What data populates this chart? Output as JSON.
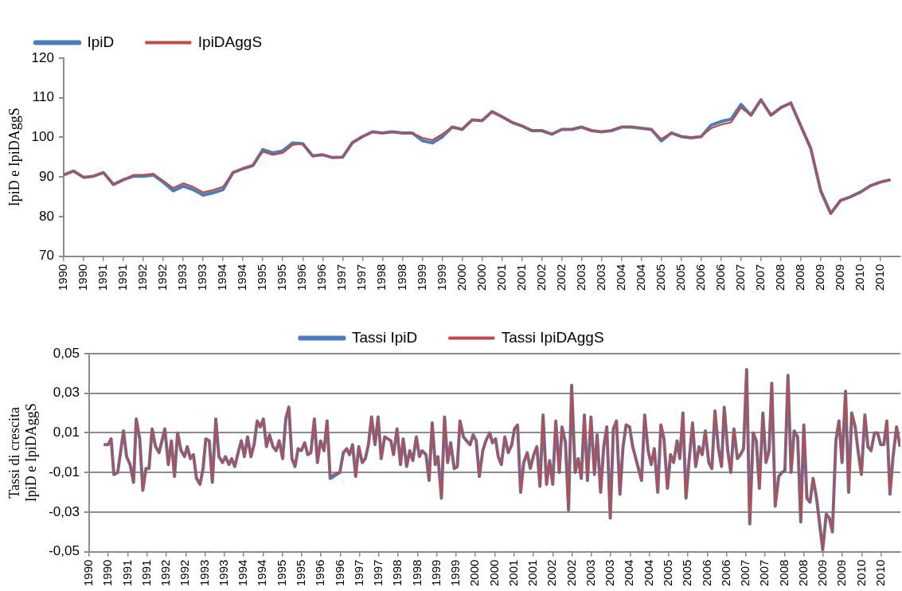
{
  "chart_data": [
    {
      "type": "line",
      "ylabel": "IpiD e IpiDAggS",
      "legend": "top left",
      "grid": false,
      "marker": "none",
      "line_style": "solid",
      "xlim": [
        1990,
        2011
      ],
      "ylim": [
        70,
        120
      ],
      "yticks": [
        70,
        80,
        90,
        100,
        110,
        120
      ],
      "xticks": [
        {
          "value": 1990,
          "label": "1990"
        },
        {
          "value": 1990.5,
          "label": "1990"
        },
        {
          "value": 1991,
          "label": "1991"
        },
        {
          "value": 1991.5,
          "label": "1991"
        },
        {
          "value": 1992,
          "label": "1992"
        },
        {
          "value": 1992.5,
          "label": "1992"
        },
        {
          "value": 1993,
          "label": "1993"
        },
        {
          "value": 1993.5,
          "label": "1993"
        },
        {
          "value": 1994,
          "label": "1994"
        },
        {
          "value": 1994.5,
          "label": "1994"
        },
        {
          "value": 1995,
          "label": "1995"
        },
        {
          "value": 1995.5,
          "label": "1995"
        },
        {
          "value": 1996,
          "label": "1996"
        },
        {
          "value": 1996.5,
          "label": "1996"
        },
        {
          "value": 1997,
          "label": "1997"
        },
        {
          "value": 1997.5,
          "label": "1997"
        },
        {
          "value": 1998,
          "label": "1998"
        },
        {
          "value": 1998.5,
          "label": "1998"
        },
        {
          "value": 1999,
          "label": "1999"
        },
        {
          "value": 1999.5,
          "label": "1999"
        },
        {
          "value": 2000,
          "label": "2000"
        },
        {
          "value": 2000.5,
          "label": "2000"
        },
        {
          "value": 2001,
          "label": "2001"
        },
        {
          "value": 2001.5,
          "label": "2001"
        },
        {
          "value": 2002,
          "label": "2002"
        },
        {
          "value": 2002.5,
          "label": "2002"
        },
        {
          "value": 2003,
          "label": "2003"
        },
        {
          "value": 2003.5,
          "label": "2003"
        },
        {
          "value": 2004,
          "label": "2004"
        },
        {
          "value": 2004.5,
          "label": "2004"
        },
        {
          "value": 2005,
          "label": "2005"
        },
        {
          "value": 2005.5,
          "label": "2005"
        },
        {
          "value": 2006,
          "label": "2006"
        },
        {
          "value": 2006.5,
          "label": "2006"
        },
        {
          "value": 2007,
          "label": "2007"
        },
        {
          "value": 2007.5,
          "label": "2007"
        },
        {
          "value": 2008,
          "label": "2008"
        },
        {
          "value": 2008.5,
          "label": "2008"
        },
        {
          "value": 2009,
          "label": "2009"
        },
        {
          "value": 2009.5,
          "label": "2009"
        },
        {
          "value": 2010,
          "label": "2010"
        },
        {
          "value": 2010.5,
          "label": "2010"
        }
      ],
      "x": [
        1990,
        1990.25,
        1990.5,
        1990.75,
        1991,
        1991.25,
        1991.5,
        1991.75,
        1992,
        1992.25,
        1992.5,
        1992.75,
        1993,
        1993.25,
        1993.5,
        1993.75,
        1994,
        1994.25,
        1994.5,
        1994.75,
        1995,
        1995.25,
        1995.5,
        1995.75,
        1996,
        1996.25,
        1996.5,
        1996.75,
        1997,
        1997.25,
        1997.5,
        1997.75,
        1998,
        1998.25,
        1998.5,
        1998.75,
        1999,
        1999.25,
        1999.5,
        1999.75,
        2000,
        2000.25,
        2000.5,
        2000.75,
        2001,
        2001.25,
        2001.5,
        2001.75,
        2002,
        2002.25,
        2002.5,
        2002.75,
        2003,
        2003.25,
        2003.5,
        2003.75,
        2004,
        2004.25,
        2004.5,
        2004.75,
        2005,
        2005.25,
        2005.5,
        2005.75,
        2006,
        2006.25,
        2006.5,
        2006.75,
        2007,
        2007.25,
        2007.5,
        2007.75,
        2008,
        2008.25,
        2008.5,
        2008.75,
        2009,
        2009.25,
        2009.5,
        2009.75,
        2010,
        2010.25,
        2010.5,
        2010.75
      ],
      "series": [
        {
          "name": "IpiD",
          "color": "#4a7ebb",
          "values": [
            90.5,
            91.5,
            89.9,
            90.2,
            91.1,
            88.1,
            89.3,
            90.2,
            90.2,
            90.5,
            88.7,
            86.5,
            87.7,
            86.8,
            85.4,
            86,
            86.8,
            91.1,
            92.1,
            92.9,
            96.9,
            96.1,
            96.6,
            98.6,
            98.4,
            95.3,
            95.6,
            94.9,
            95,
            98.7,
            100.2,
            101.4,
            101.1,
            101.4,
            101.1,
            101.1,
            99.2,
            98.6,
            100.1,
            102.6,
            102,
            104.4,
            104.2,
            106.5,
            105.2,
            103.8,
            102.9,
            101.7,
            101.7,
            100.8,
            102,
            102,
            102.6,
            101.7,
            101.4,
            101.7,
            102.6,
            102.6,
            102.3,
            102,
            99.1,
            101.1,
            100.2,
            99.9,
            100.2,
            103.1,
            104,
            104.6,
            108.3,
            105.6,
            109.5,
            105.6,
            107.5,
            108.7,
            102.9,
            97.2,
            86.5,
            80.8,
            84.1,
            85,
            86.2,
            87.8,
            88.7,
            89.3
          ]
        },
        {
          "name": "IpiDAggS",
          "color": "#be4b48",
          "values": [
            90.5,
            91.5,
            89.9,
            90.2,
            91.1,
            88.1,
            89.3,
            90.5,
            90.5,
            90.8,
            89,
            87.2,
            88.4,
            87.5,
            86.1,
            86.7,
            87.5,
            91.1,
            92.1,
            92.9,
            96.4,
            95.6,
            96.1,
            98.1,
            98.4,
            95.3,
            95.6,
            94.9,
            95,
            98.7,
            100.2,
            101.4,
            101.1,
            101.4,
            101.1,
            101.1,
            99.9,
            99.3,
            100.8,
            102.6,
            102,
            104.4,
            104.2,
            106.5,
            105.2,
            103.8,
            102.9,
            101.7,
            101.7,
            100.8,
            102,
            102,
            102.6,
            101.7,
            101.4,
            101.7,
            102.6,
            102.6,
            102.3,
            102,
            99.6,
            101.1,
            100.2,
            99.9,
            100.2,
            102.3,
            103.2,
            103.8,
            107.5,
            105.6,
            109.5,
            105.6,
            107.5,
            108.7,
            102.9,
            97.2,
            86.5,
            80.8,
            84.1,
            85,
            86.2,
            87.8,
            88.7,
            89.3
          ]
        }
      ]
    },
    {
      "type": "line",
      "ylabel": "Tassi di crescita IpiD e IpiDAggS",
      "legend": "top",
      "grid": "y",
      "marker": "none",
      "line_style": "solid",
      "xlim": [
        1990,
        2011
      ],
      "ylim": [
        -0.05,
        0.05
      ],
      "yticks": [
        {
          "value": -0.05,
          "label": "-0,05"
        },
        {
          "value": -0.03,
          "label": "-0,03"
        },
        {
          "value": -0.01,
          "label": "-0,01"
        },
        {
          "value": 0.01,
          "label": "0,01"
        },
        {
          "value": 0.03,
          "label": "0,03"
        },
        {
          "value": 0.05,
          "label": "0,05"
        }
      ],
      "xticks": [
        {
          "value": 1990,
          "label": "1990"
        },
        {
          "value": 1990.5,
          "label": "1990"
        },
        {
          "value": 1991,
          "label": "1991"
        },
        {
          "value": 1991.5,
          "label": "1991"
        },
        {
          "value": 1992,
          "label": "1992"
        },
        {
          "value": 1992.5,
          "label": "1992"
        },
        {
          "value": 1993,
          "label": "1993"
        },
        {
          "value": 1993.5,
          "label": "1993"
        },
        {
          "value": 1994,
          "label": "1994"
        },
        {
          "value": 1994.5,
          "label": "1994"
        },
        {
          "value": 1995,
          "label": "1995"
        },
        {
          "value": 1995.5,
          "label": "1995"
        },
        {
          "value": 1996,
          "label": "1996"
        },
        {
          "value": 1996.5,
          "label": "1996"
        },
        {
          "value": 1997,
          "label": "1997"
        },
        {
          "value": 1997.5,
          "label": "1997"
        },
        {
          "value": 1998,
          "label": "1998"
        },
        {
          "value": 1998.5,
          "label": "1998"
        },
        {
          "value": 1999,
          "label": "1999"
        },
        {
          "value": 1999.5,
          "label": "1999"
        },
        {
          "value": 2000,
          "label": "2000"
        },
        {
          "value": 2000.5,
          "label": "2000"
        },
        {
          "value": 2001,
          "label": "2001"
        },
        {
          "value": 2001.5,
          "label": "2001"
        },
        {
          "value": 2002,
          "label": "2002"
        },
        {
          "value": 2002.5,
          "label": "2002"
        },
        {
          "value": 2003,
          "label": "2003"
        },
        {
          "value": 2003.5,
          "label": "2003"
        },
        {
          "value": 2004,
          "label": "2004"
        },
        {
          "value": 2004.5,
          "label": "2004"
        },
        {
          "value": 2005,
          "label": "2005"
        },
        {
          "value": 2005.5,
          "label": "2005"
        },
        {
          "value": 2006,
          "label": "2006"
        },
        {
          "value": 2006.5,
          "label": "2006"
        },
        {
          "value": 2007,
          "label": "2007"
        },
        {
          "value": 2007.5,
          "label": "2007"
        },
        {
          "value": 2008,
          "label": "2008"
        },
        {
          "value": 2008.5,
          "label": "2008"
        },
        {
          "value": 2009,
          "label": "2009"
        },
        {
          "value": 2009.5,
          "label": "2009"
        },
        {
          "value": 2010,
          "label": "2010"
        },
        {
          "value": 2010.5,
          "label": "2010"
        }
      ],
      "x": [
        1990.38,
        1990.49,
        1990.57,
        1990.64,
        1990.74,
        1990.89,
        1990.97,
        1991.06,
        1991.15,
        1991.22,
        1991.31,
        1991.39,
        1991.47,
        1991.55,
        1991.63,
        1991.72,
        1991.81,
        1991.96,
        1992.05,
        1992.13,
        1992.21,
        1992.29,
        1992.38,
        1992.47,
        1992.54,
        1992.62,
        1992.7,
        1992.78,
        1992.87,
        1992.95,
        1993.02,
        1993.11,
        1993.19,
        1993.28,
        1993.36,
        1993.45,
        1993.53,
        1993.62,
        1993.69,
        1993.77,
        1993.87,
        1993.94,
        1994.02,
        1994.1,
        1994.19,
        1994.27,
        1994.35,
        1994.43,
        1994.51,
        1994.59,
        1994.67,
        1994.76,
        1994.84,
        1994.92,
        1995.01,
        1995.09,
        1995.17,
        1995.25,
        1995.33,
        1995.41,
        1995.49,
        1995.58,
        1995.66,
        1995.74,
        1995.83,
        1995.91,
        1995.99,
        1996.08,
        1996.16,
        1996.24,
        1996.33,
        1996.49,
        1996.58,
        1996.67,
        1996.74,
        1996.82,
        1996.9,
        1996.98,
        1997.07,
        1997.15,
        1997.23,
        1997.31,
        1997.4,
        1997.48,
        1997.56,
        1997.65,
        1997.81,
        1997.88,
        1997.97,
        1998.06,
        1998.13,
        1998.22,
        1998.3,
        1998.38,
        1998.47,
        1998.55,
        1998.62,
        1998.72,
        1998.8,
        1998.88,
        1998.96,
        1999.03,
        1999.12,
        1999.2,
        1999.28,
        1999.36,
        1999.45,
        1999.53,
        1999.6,
        1999.69,
        1999.77,
        1999.86,
        1999.94,
        2000.02,
        2000.1,
        2000.19,
        2000.27,
        2000.37,
        2000.44,
        2000.52,
        2000.59,
        2000.67,
        2000.76,
        2000.85,
        2000.94,
        2001.01,
        2001.09,
        2001.17,
        2001.25,
        2001.34,
        2001.42,
        2001.51,
        2001.59,
        2001.67,
        2001.75,
        2001.84,
        2001.92,
        2002,
        2002.08,
        2002.17,
        2002.24,
        2002.33,
        2002.41,
        2002.49,
        2002.58,
        2002.66,
        2002.74,
        2002.82,
        2002.9,
        2002.99,
        2003.08,
        2003.15,
        2003.24,
        2003.32,
        2003.4,
        2003.49,
        2003.57,
        2003.65,
        2003.74,
        2003.82,
        2003.9,
        2003.99,
        2004.07,
        2004.3,
        2004.38,
        2004.47,
        2004.55,
        2004.63,
        2004.72,
        2004.8,
        2004.88,
        2004.97,
        2005.05,
        2005.13,
        2005.22,
        2005.29,
        2005.37,
        2005.45,
        2005.53,
        2005.62,
        2005.7,
        2005.79,
        2005.87,
        2005.95,
        2006.04,
        2006.12,
        2006.2,
        2006.29,
        2006.37,
        2006.44,
        2006.53,
        2006.61,
        2006.69,
        2006.78,
        2006.86,
        2006.94,
        2007.02,
        2007.1,
        2007.19,
        2007.27,
        2007.35,
        2007.44,
        2007.52,
        2007.6,
        2007.67,
        2007.76,
        2007.85,
        2007.93,
        2008.01,
        2008.09,
        2008.17,
        2008.25,
        2008.34,
        2008.42,
        2008.5,
        2008.58,
        2008.66,
        2008.74,
        2008.83,
        2008.99,
        2009.08,
        2009.16,
        2009.24,
        2009.33,
        2009.41,
        2009.49,
        2009.58,
        2009.66,
        2009.74,
        2009.83,
        2009.91,
        2009.99,
        2010.08,
        2010.16,
        2010.24,
        2010.33,
        2010.41,
        2010.49,
        2010.57,
        2010.65,
        2010.73,
        2010.81,
        2010.9,
        2010.99
      ],
      "series": [
        {
          "name": "Tassi IpiD",
          "color": "#4a7ebb",
          "values": [
            0.004,
            0.004,
            0.007,
            -0.011,
            -0.01,
            0.011,
            -0.002,
            -0.006,
            -0.015,
            0.017,
            0.007,
            -0.019,
            -0.008,
            -0.008,
            0.012,
            0.003,
            0,
            0.012,
            -0.006,
            0.006,
            -0.012,
            0.01,
            0.001,
            -0.002,
            0.003,
            -0.003,
            -0.001,
            -0.013,
            -0.016,
            -0.008,
            0.007,
            0.006,
            -0.015,
            0.017,
            -0.002,
            -0.005,
            -0.002,
            -0.006,
            -0.003,
            -0.007,
            0.001,
            0.006,
            -0.002,
            0.008,
            -0.002,
            0.004,
            0.016,
            0.013,
            0.017,
            0.003,
            0.009,
            0.003,
            0.001,
            0.006,
            -0.003,
            0.017,
            0.023,
            -0.003,
            -0.007,
            0.002,
            0.001,
            0.005,
            -0.001,
            0,
            0.017,
            -0.005,
            0.006,
            0.001,
            0.016,
            -0.013,
            -0.012,
            -0.01,
            0,
            0.002,
            -0.001,
            0.004,
            -0.012,
            0.003,
            -0.005,
            -0.003,
            0.004,
            0.018,
            0.004,
            0.018,
            -0.003,
            0.008,
            0.006,
            -0.001,
            0.012,
            -0.006,
            0.007,
            -0.007,
            0.001,
            -0.004,
            0.008,
            -0.002,
            0.001,
            -0.001,
            -0.014,
            0.015,
            -0.006,
            -0.002,
            -0.023,
            0.018,
            -0.005,
            0.005,
            -0.008,
            -0.007,
            0.016,
            0.008,
            0.006,
            0.004,
            0.009,
            0.006,
            -0.012,
            0.001,
            0.006,
            0.01,
            0.005,
            0.007,
            -0.002,
            -0.006,
            0.008,
            0,
            0.004,
            0.012,
            0.014,
            -0.02,
            -0.005,
            0,
            -0.008,
            -0.001,
            0.003,
            -0.017,
            0.019,
            -0.016,
            -0.004,
            -0.016,
            0.016,
            -0.01,
            0.013,
            0.005,
            -0.029,
            0.034,
            -0.01,
            -0.003,
            -0.013,
            0.019,
            -0.014,
            0.018,
            -0.011,
            0.009,
            -0.02,
            0.003,
            0.013,
            -0.033,
            0.012,
            0.016,
            -0.021,
            0.003,
            0.014,
            0.013,
            0.003,
            -0.014,
            0.019,
            0.001,
            -0.006,
            0.002,
            -0.02,
            0.014,
            0.007,
            -0.018,
            -0.001,
            -0.005,
            0.006,
            -0.003,
            0.02,
            -0.023,
            -0.004,
            0.015,
            -0.007,
            0.003,
            -0.001,
            0.011,
            -0.005,
            -0.008,
            0.021,
            0.002,
            -0.007,
            0.023,
            0.001,
            -0.01,
            0.012,
            -0.003,
            -0.001,
            0.002,
            0.042,
            -0.036,
            0.01,
            0.006,
            -0.018,
            0.02,
            -0.005,
            0.001,
            0.035,
            -0.027,
            -0.012,
            -0.01,
            -0.009,
            0.039,
            -0.01,
            0.011,
            0.008,
            -0.035,
            0.014,
            -0.023,
            -0.025,
            -0.013,
            -0.023,
            -0.049,
            -0.031,
            -0.033,
            -0.04,
            0.006,
            0.016,
            -0.005,
            0.031,
            -0.02,
            0.02,
            0.013,
            0,
            -0.011,
            0.019,
            0.003,
            0.001,
            0.01,
            0.01,
            0.004,
            0.004,
            0.016,
            -0.021,
            -0.002,
            0.013,
            0.003
          ]
        },
        {
          "name": "Tassi IpiDAggS",
          "color": "#be4b48",
          "values": [
            0.004,
            0.004,
            0.007,
            -0.011,
            -0.01,
            0.011,
            -0.002,
            -0.006,
            -0.015,
            0.017,
            0.007,
            -0.019,
            -0.008,
            -0.008,
            0.012,
            0.003,
            0,
            0.012,
            -0.006,
            0.006,
            -0.012,
            0.01,
            0.001,
            -0.002,
            0.003,
            -0.003,
            -0.001,
            -0.013,
            -0.016,
            -0.008,
            0.007,
            0.006,
            -0.015,
            0.017,
            -0.002,
            -0.005,
            -0.002,
            -0.006,
            -0.003,
            -0.007,
            0.001,
            0.006,
            -0.002,
            0.008,
            -0.002,
            0.004,
            0.016,
            0.013,
            0.017,
            0.003,
            0.009,
            0.003,
            0.001,
            0.006,
            -0.003,
            0.017,
            0.023,
            -0.003,
            -0.007,
            0.002,
            0.001,
            0.005,
            -0.001,
            0,
            0.017,
            -0.005,
            0.006,
            0.001,
            0.016,
            -0.012,
            -0.011,
            -0.01,
            0,
            0.002,
            -0.001,
            0.004,
            -0.012,
            0.003,
            -0.005,
            -0.003,
            0.004,
            0.018,
            0.004,
            0.018,
            -0.003,
            0.008,
            0.006,
            -0.001,
            0.012,
            -0.006,
            0.007,
            -0.007,
            0.001,
            -0.004,
            0.008,
            -0.002,
            0.001,
            -0.001,
            -0.014,
            0.015,
            -0.006,
            -0.002,
            -0.023,
            0.018,
            -0.005,
            0.005,
            -0.008,
            -0.007,
            0.016,
            0.008,
            0.006,
            0.004,
            0.009,
            0.006,
            -0.012,
            0.001,
            0.006,
            0.01,
            0.005,
            0.007,
            -0.002,
            -0.006,
            0.008,
            0,
            0.004,
            0.012,
            0.014,
            -0.02,
            -0.005,
            0,
            -0.008,
            -0.001,
            0.003,
            -0.017,
            0.019,
            -0.016,
            -0.004,
            -0.016,
            0.016,
            -0.01,
            0.013,
            0.005,
            -0.029,
            0.034,
            -0.01,
            -0.003,
            -0.013,
            0.019,
            -0.014,
            0.018,
            -0.011,
            0.009,
            -0.02,
            0.003,
            0.013,
            -0.033,
            0.012,
            0.016,
            -0.021,
            0.003,
            0.014,
            0.013,
            0.003,
            -0.014,
            0.019,
            0.001,
            -0.006,
            0.002,
            -0.02,
            0.014,
            0.007,
            -0.018,
            -0.001,
            -0.005,
            0.006,
            -0.003,
            0.02,
            -0.023,
            -0.004,
            0.015,
            -0.007,
            0.003,
            -0.001,
            0.011,
            -0.005,
            -0.008,
            0.021,
            0.002,
            -0.007,
            0.023,
            0.001,
            -0.01,
            0.012,
            -0.003,
            -0.001,
            0.002,
            0.042,
            -0.036,
            0.01,
            0.006,
            -0.018,
            0.02,
            -0.005,
            0.001,
            0.035,
            -0.027,
            -0.012,
            -0.01,
            -0.009,
            0.039,
            -0.01,
            0.011,
            0.008,
            -0.035,
            0.014,
            -0.023,
            -0.025,
            -0.013,
            -0.023,
            -0.049,
            -0.031,
            -0.033,
            -0.04,
            0.006,
            0.016,
            -0.005,
            0.031,
            -0.02,
            0.02,
            0.013,
            0,
            -0.011,
            0.019,
            0.003,
            0.001,
            0.01,
            0.01,
            0.004,
            0.004,
            0.016,
            -0.021,
            -0.002,
            0.013,
            0.003
          ]
        }
      ]
    }
  ]
}
